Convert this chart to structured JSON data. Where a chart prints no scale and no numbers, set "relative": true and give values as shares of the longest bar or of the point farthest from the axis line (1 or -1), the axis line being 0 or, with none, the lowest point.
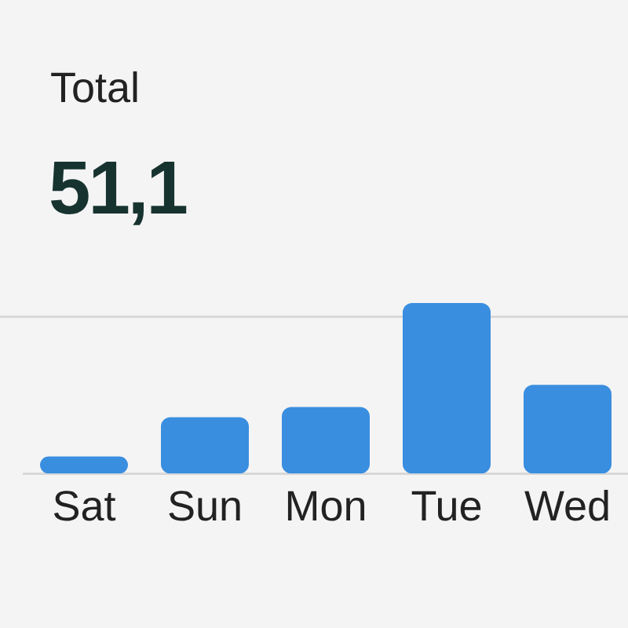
{
  "chart_data": {
    "type": "bar",
    "title": "Total",
    "subtitle": "51,1",
    "categories": [
      "Sat",
      "Sun",
      "Mon",
      "Tue",
      "Wed"
    ],
    "values": [
      0.1,
      0.33,
      0.39,
      1,
      0.52
    ],
    "color": "#3a8ee0",
    "relative": true,
    "ref_lines": [
      {
        "axis": "y",
        "value": 0.92,
        "color": "#d9d9d9"
      }
    ]
  }
}
